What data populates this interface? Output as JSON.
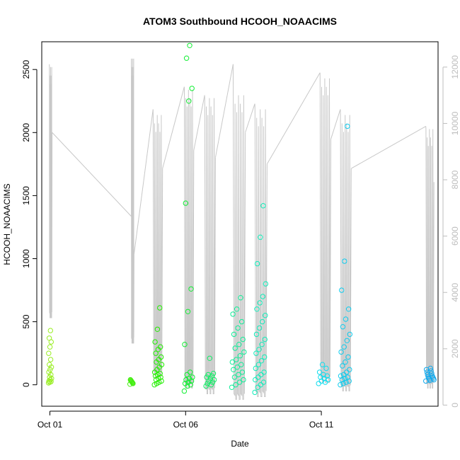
{
  "chart_data": {
    "type": "scatter",
    "title": "ATOM3 Southbound HCOOH_NOAACIMS",
    "xlabel": "Date",
    "ylabel": "HCOOH_NOAACIMS",
    "y2label": "",
    "x_ticks": [
      {
        "day": 1,
        "label": "Oct 01"
      },
      {
        "day": 6,
        "label": "Oct 06"
      },
      {
        "day": 11,
        "label": "Oct 11"
      }
    ],
    "y_ticks": [
      0,
      500,
      1000,
      1500,
      2000,
      2500
    ],
    "y2_ticks": [
      0,
      2000,
      4000,
      6000,
      8000,
      10000,
      12000
    ],
    "xlim": [
      0.7,
      15.3
    ],
    "ylim": [
      -170,
      2720
    ],
    "y2lim": [
      -40,
      12900
    ],
    "colors": {
      "axis": "#000000",
      "secondary_axis": "#bdbdbd",
      "altitude_line": "#c8c8c8"
    },
    "grid": false,
    "legend": "none",
    "series": [
      {
        "day_start": 0.95,
        "day_end": 1.06,
        "color": "#99ee22",
        "values": [
          15,
          20,
          25,
          30,
          40,
          50,
          60,
          80,
          100,
          120,
          140,
          160,
          200,
          250,
          300,
          340,
          370,
          430
        ]
      },
      {
        "day_start": 3.95,
        "day_end": 4.06,
        "color": "#44ee11",
        "values": [
          5,
          10,
          15,
          20,
          25,
          30,
          35,
          40
        ]
      },
      {
        "day_start": 4.85,
        "day_end": 5.12,
        "color": "#22ee00",
        "values": [
          0,
          10,
          20,
          30,
          40,
          50,
          60,
          70,
          80,
          90,
          100,
          120,
          140,
          160,
          180,
          200,
          220,
          250,
          280,
          300,
          340,
          440,
          610
        ]
      },
      {
        "day_start": 5.95,
        "day_end": 6.25,
        "color": "#11ee33",
        "values": [
          -50,
          -10,
          0,
          10,
          20,
          30,
          40,
          50,
          60,
          80,
          100,
          320,
          580,
          760,
          1440,
          2250,
          2350,
          2590,
          2690
        ]
      },
      {
        "day_start": 6.75,
        "day_end": 7.05,
        "color": "#11ee66",
        "values": [
          -10,
          0,
          10,
          20,
          30,
          40,
          50,
          60,
          70,
          80,
          90,
          210
        ]
      },
      {
        "day_start": 7.7,
        "day_end": 8.15,
        "color": "#11ee99",
        "values": [
          -20,
          0,
          20,
          40,
          60,
          80,
          100,
          120,
          140,
          160,
          180,
          200,
          230,
          260,
          290,
          320,
          360,
          400,
          450,
          500,
          560,
          600,
          690
        ]
      },
      {
        "day_start": 8.55,
        "day_end": 8.95,
        "color": "#11eebb",
        "values": [
          -60,
          -20,
          0,
          20,
          40,
          60,
          80,
          100,
          130,
          160,
          190,
          220,
          250,
          280,
          320,
          360,
          400,
          450,
          500,
          550,
          600,
          650,
          700,
          800,
          960,
          1170,
          1420
        ]
      },
      {
        "day_start": 10.9,
        "day_end": 11.25,
        "color": "#11ddee",
        "values": [
          10,
          20,
          30,
          40,
          50,
          60,
          70,
          80,
          100,
          130,
          160
        ]
      },
      {
        "day_start": 11.7,
        "day_end": 12.05,
        "color": "#11ccee",
        "values": [
          0,
          10,
          20,
          30,
          40,
          50,
          60,
          70,
          80,
          100,
          120,
          150,
          180,
          220,
          260,
          300,
          350,
          400,
          460,
          520,
          600,
          750,
          980,
          2050
        ]
      },
      {
        "day_start": 14.85,
        "day_end": 15.15,
        "color": "#11aaee",
        "values": [
          30,
          35,
          40,
          45,
          50,
          55,
          60,
          65,
          70,
          80,
          90,
          100,
          110,
          120,
          130
        ]
      }
    ],
    "altitude_flights": [
      {
        "start": 0.98,
        "end": 1.08,
        "top": 12000,
        "low": 3100,
        "up": 12100
      },
      {
        "start": 4.0,
        "end": 4.1,
        "top": 12300,
        "low": 2200,
        "up": 6700
      },
      {
        "start": 4.8,
        "end": 5.15,
        "top": 10300,
        "low": 1000,
        "up": 10500
      },
      {
        "start": 5.95,
        "end": 6.3,
        "top": 11200,
        "low": 600,
        "up": 11300
      },
      {
        "start": 6.7,
        "end": 7.1,
        "top": 10900,
        "low": 400,
        "up": 11000
      },
      {
        "start": 7.75,
        "end": 8.2,
        "top": 11000,
        "low": 200,
        "up": 12100
      },
      {
        "start": 8.55,
        "end": 9.0,
        "top": 10500,
        "low": 300,
        "up": 10700
      },
      {
        "start": 10.95,
        "end": 11.35,
        "top": 11600,
        "low": 800,
        "up": 11800
      },
      {
        "start": 11.7,
        "end": 12.1,
        "top": 10300,
        "low": 500,
        "up": 10500
      },
      {
        "start": 14.85,
        "end": 15.15,
        "top": 9800,
        "low": 600,
        "up": 9900
      }
    ]
  }
}
